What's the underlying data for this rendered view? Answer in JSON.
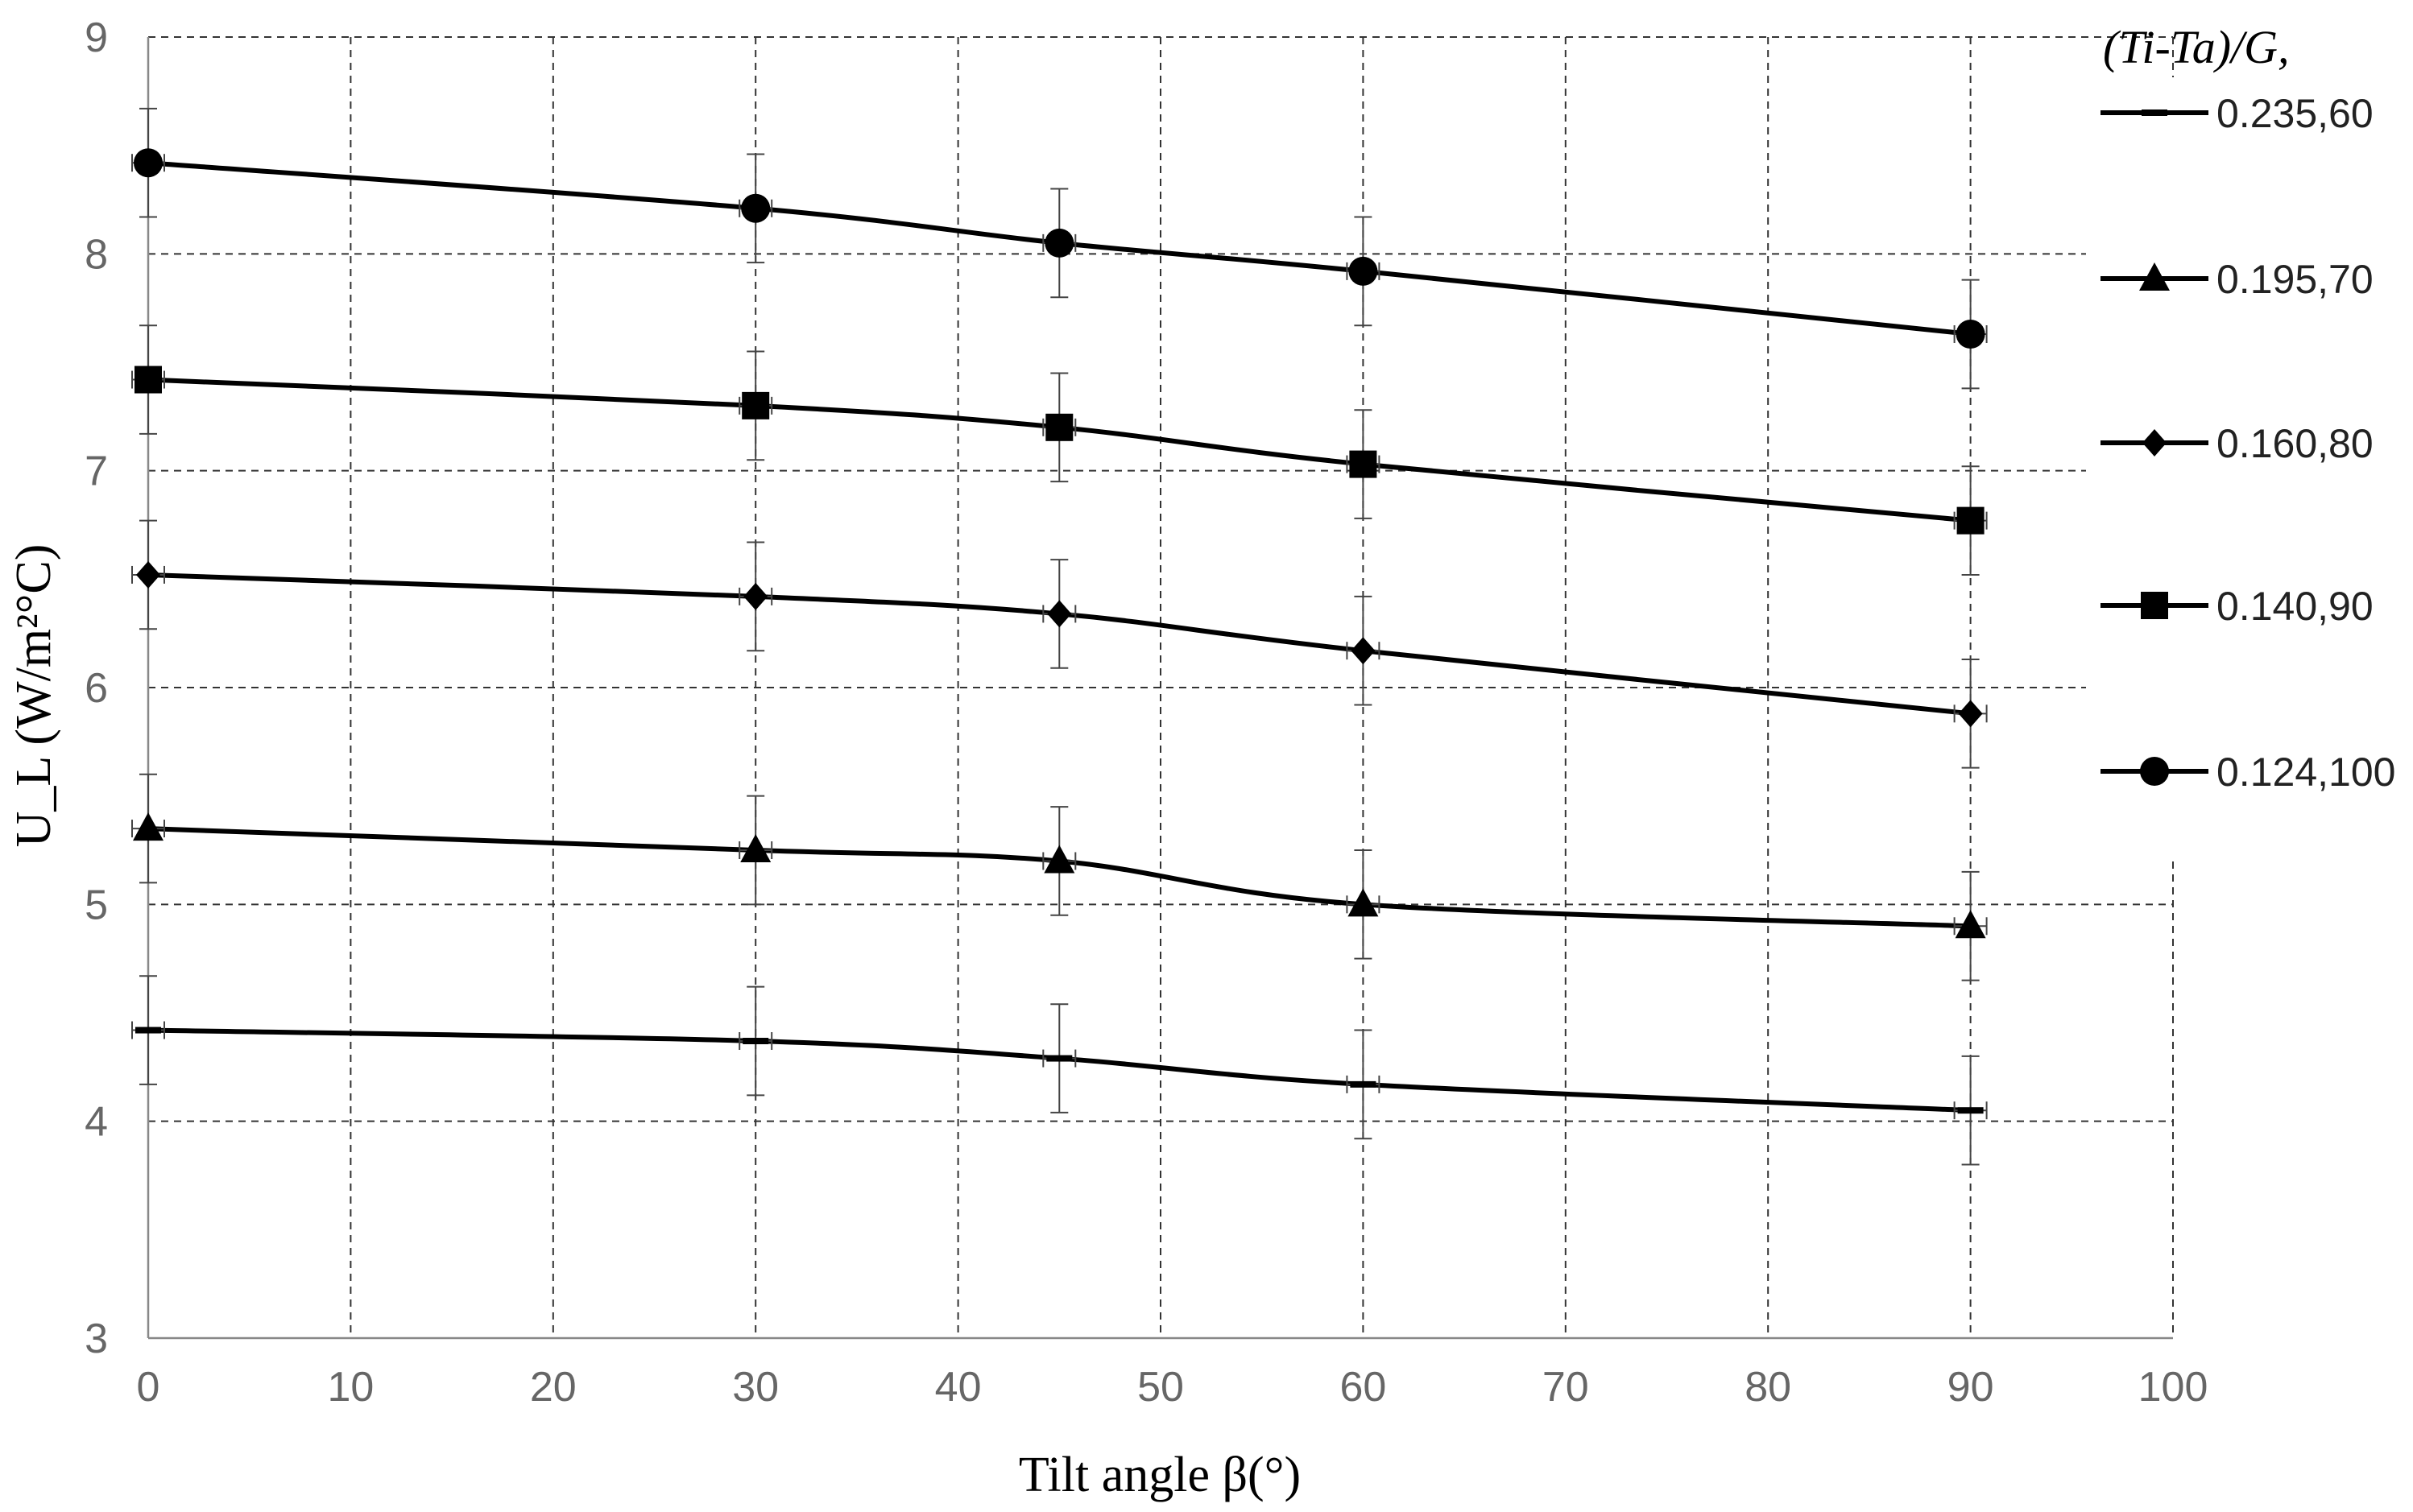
{
  "chart_data": {
    "type": "line",
    "title": "",
    "xlabel": "Tilt angle β(°)",
    "ylabel": "U_L (W/m²°C)",
    "xlim": [
      0,
      100
    ],
    "ylim": [
      3,
      9
    ],
    "x_ticks": [
      "0",
      "10",
      "20",
      "30",
      "40",
      "50",
      "60",
      "70",
      "80",
      "90",
      "100"
    ],
    "y_ticks": [
      "3",
      "4",
      "5",
      "6",
      "7",
      "8",
      "9"
    ],
    "grid": true,
    "legend_position": "right",
    "legend_title": "(Ti-Ta)/G,",
    "error_bar": 0.25,
    "x": [
      0,
      30,
      45,
      60,
      90
    ],
    "series": [
      {
        "name": "0.235,60",
        "marker": "dash",
        "values": [
          4.42,
          4.37,
          4.29,
          4.17,
          4.05
        ]
      },
      {
        "name": "0.195,70",
        "marker": "triangle",
        "values": [
          5.35,
          5.25,
          5.2,
          5.0,
          4.9
        ]
      },
      {
        "name": "0.160,80",
        "marker": "diamond",
        "values": [
          6.52,
          6.42,
          6.34,
          6.17,
          5.88
        ]
      },
      {
        "name": "0.140,90",
        "marker": "square",
        "values": [
          7.42,
          7.3,
          7.2,
          7.03,
          6.77
        ]
      },
      {
        "name": "0.124,100",
        "marker": "circle",
        "values": [
          8.42,
          8.21,
          8.05,
          7.92,
          7.63
        ]
      }
    ],
    "colors": {
      "line": "#000000",
      "grid": "#333333",
      "axis_text": "#666666"
    }
  }
}
